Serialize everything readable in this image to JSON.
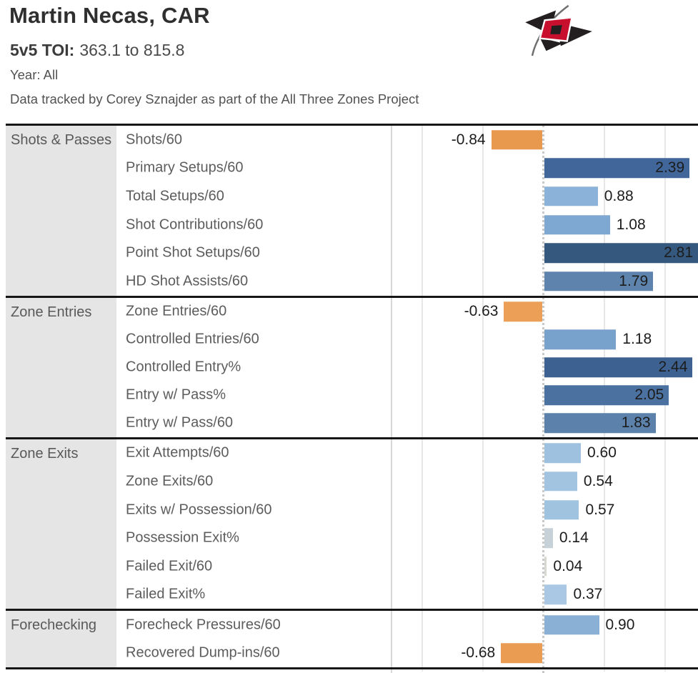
{
  "header": {
    "title": "Martin Necas, CAR",
    "toi_label": "5v5 TOI:",
    "toi_value": "363.1 to 815.8",
    "year_line": "Year: All",
    "credit_line": "Data tracked by Corey Sznajder as part of the All Three Zones Project",
    "logo": {
      "name": "hurricanes-flag-logo",
      "black": "#231f20",
      "red": "#c8102e",
      "pole_gray": "#6e6e6e"
    }
  },
  "chart_data": {
    "type": "bar",
    "orientation": "horizontal",
    "title": "Martin Necas, CAR",
    "xlabel": "",
    "ylabel": "",
    "xlim": [
      -2.5,
      2.55
    ],
    "gridlines_at": [
      -2,
      -1,
      1,
      2
    ],
    "zero_line": 0,
    "grid": "on",
    "legend": "none",
    "negative_color_family": "orange",
    "positive_color_family": "blue",
    "sections": [
      {
        "label": "Shots & Passes",
        "rows": [
          {
            "metric": "Shots/60",
            "value": "-0.84",
            "num": -0.84,
            "color": "#e9994e"
          },
          {
            "metric": "Primary Setups/60",
            "value": "2.39",
            "num": 2.39,
            "color": "#40669a"
          },
          {
            "metric": "Total Setups/60",
            "value": "0.88",
            "num": 0.88,
            "color": "#8bb2d8"
          },
          {
            "metric": "Shot Contributions/60",
            "value": "1.08",
            "num": 1.08,
            "color": "#7ea8d1"
          },
          {
            "metric": "Point Shot Setups/60",
            "value": "2.81",
            "num": 2.81,
            "color": "#35587e"
          },
          {
            "metric": "HD Shot Assists/60",
            "value": "1.79",
            "num": 1.79,
            "color": "#5e84ae"
          }
        ]
      },
      {
        "label": "Zone Entries",
        "rows": [
          {
            "metric": "Zone Entries/60",
            "value": "-0.63",
            "num": -0.63,
            "color": "#eb9f57"
          },
          {
            "metric": "Controlled Entries/60",
            "value": "1.18",
            "num": 1.18,
            "color": "#78a2cc"
          },
          {
            "metric": "Controlled Entry%",
            "value": "2.44",
            "num": 2.44,
            "color": "#3d6292"
          },
          {
            "metric": "Entry w/ Pass%",
            "value": "2.05",
            "num": 2.05,
            "color": "#4b71a1"
          },
          {
            "metric": "Entry w/ Pass/60",
            "value": "1.83",
            "num": 1.83,
            "color": "#5c82ac"
          }
        ]
      },
      {
        "label": "Zone Exits",
        "rows": [
          {
            "metric": "Exit Attempts/60",
            "value": "0.60",
            "num": 0.6,
            "color": "#9dc1df"
          },
          {
            "metric": "Zone Exits/60",
            "value": "0.54",
            "num": 0.54,
            "color": "#a2c4e1"
          },
          {
            "metric": "Exits w/ Possession/60",
            "value": "0.57",
            "num": 0.57,
            "color": "#a0c3e0"
          },
          {
            "metric": "Possession Exit%",
            "value": "0.14",
            "num": 0.14,
            "color": "#c7d2d8"
          },
          {
            "metric": "Failed Exit/60",
            "value": "0.04",
            "num": 0.04,
            "color": "#d8d8d2"
          },
          {
            "metric": "Failed Exit%",
            "value": "0.37",
            "num": 0.37,
            "color": "#aac8e3"
          }
        ]
      },
      {
        "label": "Forechecking",
        "rows": [
          {
            "metric": "Forecheck Pressures/60",
            "value": "0.90",
            "num": 0.9,
            "color": "#8ab0d6"
          },
          {
            "metric": "Recovered Dump-ins/60",
            "value": "-0.68",
            "num": -0.68,
            "color": "#ea9c52"
          }
        ]
      }
    ]
  }
}
